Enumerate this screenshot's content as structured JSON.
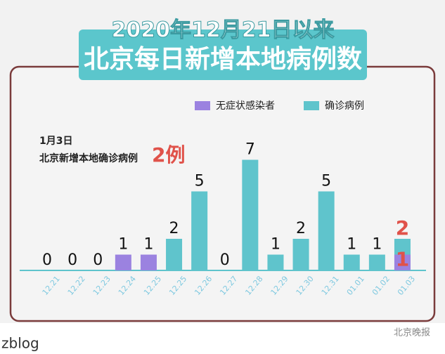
{
  "chart_data": {
    "type": "bar",
    "title": "2020年12月21日以来",
    "subtitle": "北京每日新增本地病例数",
    "categories": [
      "12.21",
      "12.22",
      "12.23",
      "12.24",
      "12.25",
      "12.25",
      "12.26",
      "12.27",
      "12.28",
      "12.29",
      "12.30",
      "12.31",
      "01.01",
      "01.02",
      "01.03"
    ],
    "series": [
      {
        "name": "确诊病例",
        "color": "#5fc4cc",
        "values": [
          0,
          0,
          0,
          null,
          null,
          2,
          5,
          0,
          7,
          1,
          2,
          5,
          1,
          1,
          2
        ]
      },
      {
        "name": "无症状感染者",
        "color": "#9b82e0",
        "values": [
          null,
          null,
          null,
          1,
          1,
          null,
          null,
          null,
          null,
          null,
          null,
          null,
          null,
          null,
          1
        ]
      }
    ],
    "highlight_color": "#e0524a",
    "annotation": {
      "date": "1月3日",
      "text": "北京新增本地确诊病例",
      "highlight": "2例"
    },
    "watermark": "北京晚报",
    "footer": "zblog"
  }
}
